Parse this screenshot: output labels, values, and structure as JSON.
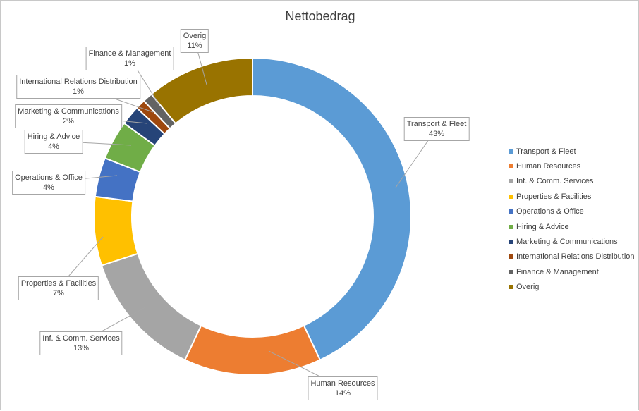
{
  "chart_data": {
    "type": "pie",
    "variant": "donut",
    "title": "Nettobedrag",
    "legend_position": "right",
    "slices": [
      {
        "name": "Transport & Fleet",
        "value": 43,
        "label": "43%",
        "color": "#5b9bd5"
      },
      {
        "name": "Human Resources",
        "value": 14,
        "label": "14%",
        "color": "#ed7d31"
      },
      {
        "name": "Inf. & Comm. Services",
        "value": 13,
        "label": "13%",
        "color": "#a5a5a5"
      },
      {
        "name": "Properties & Facilities",
        "value": 7,
        "label": "7%",
        "color": "#ffc000"
      },
      {
        "name": "Operations & Office",
        "value": 4,
        "label": "4%",
        "color": "#4472c4"
      },
      {
        "name": "Hiring & Advice",
        "value": 4,
        "label": "4%",
        "color": "#70ad47"
      },
      {
        "name": "Marketing & Communications",
        "value": 2,
        "label": "2%",
        "color": "#264478"
      },
      {
        "name": "International Relations Distribution",
        "value": 1,
        "label": "1%",
        "color": "#9e480e"
      },
      {
        "name": "Finance & Management",
        "value": 1,
        "label": "1%",
        "color": "#636363"
      },
      {
        "name": "Overig",
        "value": 11,
        "label": "11%",
        "color": "#997300"
      }
    ]
  }
}
